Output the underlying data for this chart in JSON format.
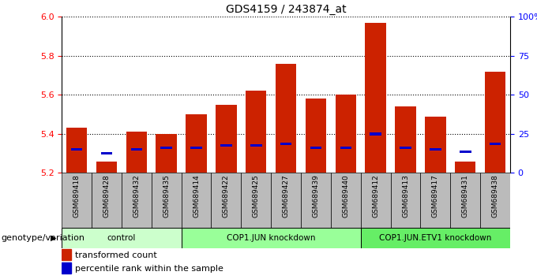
{
  "title": "GDS4159 / 243874_at",
  "samples": [
    "GSM689418",
    "GSM689428",
    "GSM689432",
    "GSM689435",
    "GSM689414",
    "GSM689422",
    "GSM689425",
    "GSM689427",
    "GSM689439",
    "GSM689440",
    "GSM689412",
    "GSM689413",
    "GSM689417",
    "GSM689431",
    "GSM689438"
  ],
  "red_values": [
    5.43,
    5.26,
    5.41,
    5.4,
    5.5,
    5.55,
    5.62,
    5.76,
    5.58,
    5.6,
    5.97,
    5.54,
    5.49,
    5.26,
    5.72
  ],
  "blue_values": [
    5.32,
    5.3,
    5.32,
    5.33,
    5.33,
    5.34,
    5.34,
    5.35,
    5.33,
    5.33,
    5.4,
    5.33,
    5.32,
    5.31,
    5.35
  ],
  "groups": [
    {
      "label": "control",
      "start": 0,
      "end": 4,
      "color": "#ccffcc"
    },
    {
      "label": "COP1.JUN knockdown",
      "start": 4,
      "end": 10,
      "color": "#99ff99"
    },
    {
      "label": "COP1.JUN.ETV1 knockdown",
      "start": 10,
      "end": 15,
      "color": "#66ee66"
    }
  ],
  "ymin": 5.2,
  "ymax": 6.0,
  "y_ticks_left": [
    5.2,
    5.4,
    5.6,
    5.8,
    6.0
  ],
  "y_ticks_right": [
    0,
    25,
    50,
    75,
    100
  ],
  "bar_color": "#cc2200",
  "blue_color": "#0000cc",
  "background_color": "#ffffff",
  "plot_bg_color": "#ffffff",
  "xlabel": "genotype/variation",
  "legend_items": [
    "transformed count",
    "percentile rank within the sample"
  ],
  "tick_box_color": "#bbbbbb",
  "tick_box_edge": "#000000"
}
